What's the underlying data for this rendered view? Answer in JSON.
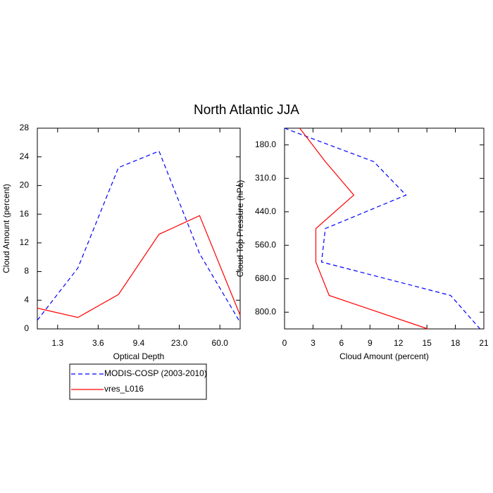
{
  "title": "North Atlantic JJA",
  "chart_data": [
    {
      "type": "line",
      "xlabel": "Optical Depth",
      "ylabel": "Cloud Amount (percent)",
      "x": [
        0,
        1,
        2,
        3,
        4,
        5
      ],
      "xlim": [
        0,
        5
      ],
      "xticks": [
        {
          "value": 0.5,
          "label": "1.3"
        },
        {
          "value": 1.5,
          "label": "3.6"
        },
        {
          "value": 2.5,
          "label": "9.4"
        },
        {
          "value": 3.5,
          "label": "23.0"
        },
        {
          "value": 4.5,
          "label": "60.0"
        }
      ],
      "ylim": [
        0,
        28
      ],
      "yticks": [
        0,
        4,
        8,
        12,
        16,
        20,
        24,
        28
      ],
      "series": [
        {
          "name": "MODIS-COSP (2003-2010)",
          "color": "#0000ff",
          "line_style": "dashed",
          "values": [
            1.2,
            8.5,
            22.5,
            24.8,
            10.5,
            0.9
          ]
        },
        {
          "name": "vres_L016",
          "color": "#ff0000",
          "line_style": "solid",
          "values": [
            2.9,
            1.6,
            4.8,
            13.2,
            15.8,
            1.9
          ]
        }
      ]
    },
    {
      "type": "line",
      "orientation": "horizontal",
      "xlabel": "Cloud Amount (percent)",
      "ylabel": "Cloud Top Pressure (hPa)",
      "xlim": [
        0,
        21
      ],
      "xticks": [
        0,
        3,
        6,
        9,
        12,
        15,
        18,
        21
      ],
      "y": [
        0,
        1,
        2,
        3,
        4,
        5,
        6
      ],
      "ylim": [
        0,
        6
      ],
      "y_inverted": true,
      "yticks": [
        {
          "value": 0.5,
          "label": "180.0"
        },
        {
          "value": 1.5,
          "label": "310.0"
        },
        {
          "value": 2.5,
          "label": "440.0"
        },
        {
          "value": 3.5,
          "label": "560.0"
        },
        {
          "value": 4.5,
          "label": "680.0"
        },
        {
          "value": 5.5,
          "label": "800.0"
        }
      ],
      "series": [
        {
          "color": "#0000ff",
          "line_style": "dashed",
          "values": [
            0.0,
            9.4,
            12.8,
            4.3,
            3.9,
            17.5,
            20.6
          ]
        },
        {
          "color": "#ff0000",
          "line_style": "solid",
          "values": [
            1.6,
            4.3,
            7.3,
            3.3,
            3.3,
            4.7,
            15.1
          ]
        }
      ]
    }
  ]
}
